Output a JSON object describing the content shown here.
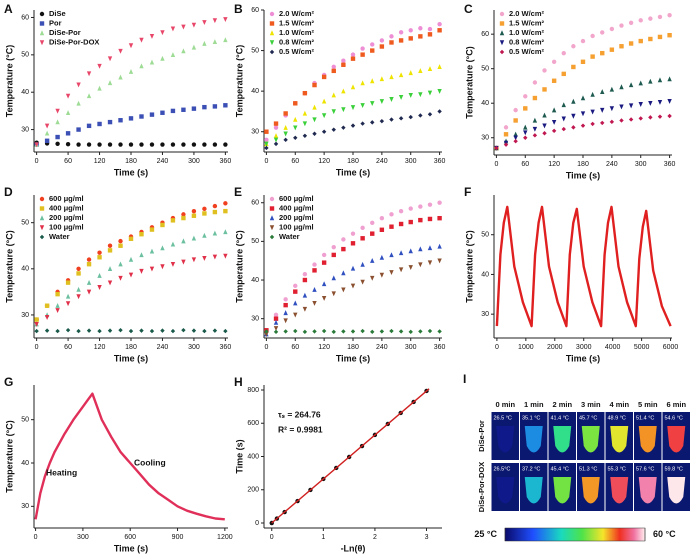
{
  "chart_data": [
    {
      "type": "scatter",
      "panel": "A",
      "xlabel": "Time (s)",
      "ylabel": "Temperature (°C)",
      "x": [
        0,
        20,
        40,
        60,
        80,
        100,
        120,
        140,
        160,
        180,
        200,
        220,
        240,
        260,
        280,
        300,
        320,
        340,
        360
      ],
      "xlim": [
        -5,
        365
      ],
      "xticks": [
        0,
        60,
        120,
        180,
        240,
        300,
        360
      ],
      "ylim": [
        24,
        62
      ],
      "yticks": [
        30,
        40,
        50,
        60
      ],
      "legend": "upper left",
      "series": [
        {
          "name": "DiSe",
          "color": "#111111",
          "marker": "circle",
          "values": [
            26.5,
            26.3,
            26.2,
            26.1,
            26,
            26,
            26,
            26,
            26,
            26,
            26,
            26,
            26,
            26,
            26,
            26,
            26,
            26,
            26
          ]
        },
        {
          "name": "Por",
          "color": "#3b4fb5",
          "marker": "square",
          "values": [
            26,
            27,
            28,
            29,
            30,
            31,
            31.5,
            32,
            32.5,
            33,
            33.5,
            34,
            34.5,
            35,
            35.3,
            35.6,
            36,
            36.2,
            36.5
          ]
        },
        {
          "name": "DiSe-Por",
          "color": "#9edc96",
          "marker": "triangle",
          "values": [
            26,
            29,
            32,
            34.5,
            37,
            39,
            41,
            42.5,
            44,
            45.5,
            47,
            48,
            49,
            50,
            51,
            52,
            53,
            53.5,
            54
          ]
        },
        {
          "name": "DiSe-Por-DOX",
          "color": "#e8476a",
          "marker": "triangle-down",
          "values": [
            26,
            31,
            35,
            39,
            42,
            45,
            47,
            49,
            51,
            52.5,
            54,
            55,
            56,
            57,
            57.5,
            58,
            58.7,
            59.2,
            59.5
          ]
        }
      ]
    },
    {
      "type": "scatter",
      "panel": "B",
      "xlabel": "Time (s)",
      "ylabel": "Temperature (°C)",
      "x": [
        0,
        20,
        40,
        60,
        80,
        100,
        120,
        140,
        160,
        180,
        200,
        220,
        240,
        260,
        280,
        300,
        320,
        340,
        360
      ],
      "xlim": [
        -5,
        365
      ],
      "xticks": [
        0,
        60,
        120,
        180,
        240,
        300,
        360
      ],
      "ylim": [
        25,
        60
      ],
      "yticks": [
        30,
        40,
        50,
        60
      ],
      "legend": "upper left",
      "series": [
        {
          "name": "2.0 W/cm²",
          "color": "#ee8fd6",
          "marker": "circle",
          "values": [
            28,
            31,
            34,
            37,
            39.5,
            42,
            44,
            46,
            47.5,
            49,
            50.5,
            51.5,
            52.5,
            53.5,
            54.5,
            55,
            55.5,
            55.3,
            56.5
          ]
        },
        {
          "name": "1.5 W/cm²",
          "color": "#ef5a1e",
          "marker": "square",
          "values": [
            30,
            32,
            34.5,
            37,
            39.5,
            41.5,
            43.5,
            45,
            46.5,
            48,
            49,
            50,
            51,
            52,
            52.5,
            53,
            53.5,
            54,
            55
          ]
        },
        {
          "name": "1.0 W/cm²",
          "color": "#eee400",
          "marker": "triangle",
          "values": [
            27,
            29,
            31,
            33,
            34.5,
            36,
            37.5,
            39,
            40,
            41,
            42,
            42.5,
            43,
            43.5,
            44,
            44.5,
            45,
            45.5,
            46
          ]
        },
        {
          "name": "0.8 W/cm²",
          "color": "#3ad03a",
          "marker": "triangle-down",
          "values": [
            27,
            28,
            29.5,
            31,
            32,
            33,
            34,
            35,
            35.5,
            36,
            36.5,
            37,
            37.5,
            38,
            38.5,
            39,
            39.2,
            39.6,
            40
          ]
        },
        {
          "name": "0.5 W/cm²",
          "color": "#202a50",
          "marker": "diamond",
          "values": [
            26,
            27,
            28,
            28.5,
            29,
            29.5,
            30,
            30.5,
            31,
            31.5,
            32,
            32.3,
            32.6,
            33,
            33.3,
            33.6,
            34,
            34.3,
            35
          ]
        }
      ]
    },
    {
      "type": "scatter",
      "panel": "C",
      "xlabel": "Time (s)",
      "ylabel": "Temperature (°C)",
      "x": [
        0,
        20,
        40,
        60,
        80,
        100,
        120,
        140,
        160,
        180,
        200,
        220,
        240,
        260,
        280,
        300,
        320,
        340,
        360
      ],
      "xlim": [
        -5,
        365
      ],
      "xticks": [
        0,
        60,
        120,
        180,
        240,
        300,
        360
      ],
      "ylim": [
        25,
        67
      ],
      "yticks": [
        30,
        40,
        50,
        60
      ],
      "legend": "upper left",
      "series": [
        {
          "name": "2.0 W/cm²",
          "color": "#f2a6cc",
          "marker": "circle",
          "values": [
            27,
            33,
            38,
            42,
            46,
            49.5,
            52,
            54.5,
            56.5,
            58,
            59.5,
            60.5,
            61.5,
            62.5,
            63.3,
            64,
            64.5,
            65,
            65.5
          ]
        },
        {
          "name": "1.5 W/cm²",
          "color": "#f5a030",
          "marker": "square",
          "values": [
            27,
            31,
            35,
            38.5,
            41.5,
            44,
            46.5,
            48.5,
            50.5,
            52,
            53.5,
            54.5,
            55.5,
            56.5,
            57.3,
            58,
            58.6,
            59.2,
            59.7
          ]
        },
        {
          "name": "1.0 W/cm²",
          "color": "#1e5a50",
          "marker": "triangle",
          "values": [
            27,
            29,
            31,
            33,
            35,
            36.5,
            38,
            39.5,
            40.5,
            41.5,
            42.5,
            43.3,
            44,
            44.7,
            45.3,
            45.8,
            46.3,
            46.7,
            47
          ]
        },
        {
          "name": "0.8 W/cm²",
          "color": "#1a1a80",
          "marker": "triangle-down",
          "values": [
            27,
            28.5,
            30,
            31.5,
            32.5,
            33.5,
            34.5,
            35.5,
            36.3,
            37,
            37.5,
            38,
            38.5,
            39,
            39.3,
            39.7,
            40,
            40.3,
            40.6
          ]
        },
        {
          "name": "0.5 W/cm²",
          "color": "#c01850",
          "marker": "diamond",
          "values": [
            27,
            28,
            29,
            30,
            30.7,
            31.3,
            32,
            32.5,
            33,
            33.5,
            34,
            34.3,
            34.6,
            35,
            35.3,
            35.6,
            35.9,
            36.1,
            36.3
          ]
        }
      ]
    },
    {
      "type": "scatter",
      "panel": "D",
      "xlabel": "Time (s)",
      "ylabel": "Temperature (°C)",
      "x": [
        0,
        20,
        40,
        60,
        80,
        100,
        120,
        140,
        160,
        180,
        200,
        220,
        240,
        260,
        280,
        300,
        320,
        340,
        360
      ],
      "xlim": [
        -5,
        365
      ],
      "xticks": [
        0,
        60,
        120,
        180,
        240,
        300,
        360
      ],
      "ylim": [
        25,
        56
      ],
      "yticks": [
        30,
        40,
        50
      ],
      "legend": "upper left",
      "series": [
        {
          "name": "600 μg/ml",
          "color": "#f04020",
          "marker": "circle",
          "values": [
            29,
            32,
            35,
            37.5,
            40,
            42,
            43.5,
            45,
            46,
            47,
            48,
            49,
            50,
            51,
            51.8,
            52.5,
            53,
            53.6,
            54.2
          ]
        },
        {
          "name": "400 μg/ml",
          "color": "#e0c020",
          "marker": "square",
          "values": [
            29,
            32,
            34.5,
            37,
            39,
            41,
            42.5,
            44,
            45,
            46.5,
            47.5,
            48.5,
            49.5,
            50.5,
            51,
            51.5,
            52,
            52.3,
            52.5
          ]
        },
        {
          "name": "200 μg/ml",
          "color": "#6cc0a0",
          "marker": "triangle",
          "values": [
            28,
            30,
            32,
            34,
            35.5,
            37,
            38.5,
            40,
            41,
            42,
            43,
            43.8,
            44.5,
            45.3,
            46,
            46.6,
            47.2,
            47.7,
            48
          ]
        },
        {
          "name": "100 μg/ml",
          "color": "#e0304a",
          "marker": "triangle-down",
          "values": [
            28,
            29.5,
            31,
            32.5,
            34,
            35,
            36,
            37,
            38,
            38.7,
            39.5,
            40,
            40.5,
            41,
            41.5,
            42,
            42.3,
            42.6,
            42.8
          ]
        },
        {
          "name": "Water",
          "color": "#1a5a4a",
          "marker": "diamond",
          "values": [
            26.5,
            26.6,
            26.5,
            26.7,
            26.5,
            26.6,
            26.5,
            26.6,
            26.7,
            26.5,
            26.6,
            26.5,
            26.6,
            26.5,
            26.7,
            26.6,
            26.5,
            26.6,
            26.5
          ]
        }
      ]
    },
    {
      "type": "scatter",
      "panel": "E",
      "xlabel": "Time (s)",
      "ylabel": "Temperature (°C)",
      "x": [
        0,
        20,
        40,
        60,
        80,
        100,
        120,
        140,
        160,
        180,
        200,
        220,
        240,
        260,
        280,
        300,
        320,
        340,
        360
      ],
      "xlim": [
        -5,
        365
      ],
      "xticks": [
        0,
        60,
        120,
        180,
        240,
        300,
        360
      ],
      "ylim": [
        25,
        62
      ],
      "yticks": [
        30,
        40,
        50,
        60
      ],
      "legend": "upper left",
      "series": [
        {
          "name": "600 μg/ml",
          "color": "#f0a0d0",
          "marker": "circle",
          "values": [
            27,
            31,
            35,
            38.5,
            41.5,
            44,
            46.5,
            48.5,
            50.5,
            52,
            53.5,
            54.8,
            56,
            57,
            57.8,
            58.5,
            59,
            59.5,
            60
          ]
        },
        {
          "name": "400 μg/ml",
          "color": "#e02030",
          "marker": "square",
          "values": [
            27,
            30,
            33.5,
            37,
            40,
            42.5,
            44.5,
            46.5,
            48,
            49.5,
            50.8,
            52,
            53,
            53.8,
            54.5,
            55,
            55.5,
            55.8,
            56
          ]
        },
        {
          "name": "200 μg/ml",
          "color": "#3050c0",
          "marker": "triangle",
          "values": [
            26,
            29,
            31.5,
            34,
            36,
            37.5,
            39,
            40.5,
            41.8,
            43,
            44,
            45,
            45.8,
            46.5,
            47,
            47.5,
            48,
            48.3,
            48.7
          ]
        },
        {
          "name": "100 μg/ml",
          "color": "#8a5030",
          "marker": "triangle-down",
          "values": [
            26,
            27.5,
            29.5,
            31,
            32.5,
            34,
            35.3,
            36.5,
            37.5,
            38.5,
            39.5,
            40.5,
            41.3,
            42,
            42.7,
            43.3,
            44,
            44.5,
            45
          ]
        },
        {
          "name": "Water",
          "color": "#2a7a3a",
          "marker": "diamond",
          "values": [
            26.7,
            26.6,
            26.7,
            26.8,
            26.6,
            26.7,
            26.8,
            26.6,
            26.7,
            26.7,
            26.8,
            26.6,
            26.7,
            26.8,
            26.7,
            26.6,
            26.7,
            26.8,
            26.7
          ]
        }
      ]
    },
    {
      "type": "line",
      "panel": "F",
      "xlabel": "Time (s)",
      "ylabel": "Temperature (°C)",
      "color": "#e02020",
      "x": [
        0,
        120,
        240,
        360,
        600,
        900,
        1200,
        1320,
        1440,
        1560,
        1800,
        2100,
        2400,
        2520,
        2640,
        2760,
        3000,
        3300,
        3600,
        3720,
        3840,
        3960,
        4200,
        4500,
        4800,
        4920,
        5040,
        5160,
        5400,
        5700,
        6000
      ],
      "values": [
        27,
        45,
        53,
        57,
        42,
        33,
        27,
        45,
        53,
        57,
        42,
        33,
        27,
        45,
        53,
        56.5,
        42,
        33,
        27,
        45,
        53,
        57,
        42,
        33,
        27,
        44,
        52,
        56,
        41,
        32,
        27
      ],
      "xlim": [
        -100,
        6050
      ],
      "xticks": [
        0,
        1000,
        2000,
        3000,
        4000,
        5000,
        6000
      ],
      "ylim": [
        24,
        60
      ],
      "yticks": [
        30,
        40,
        50
      ]
    },
    {
      "type": "line",
      "panel": "G",
      "xlabel": "Time (s)",
      "ylabel": "Temperature (°C)",
      "color": "#e0305a",
      "x": [
        0,
        30,
        60,
        90,
        120,
        180,
        240,
        300,
        330,
        360,
        390,
        420,
        480,
        540,
        600,
        660,
        720,
        780,
        840,
        900,
        960,
        1020,
        1080,
        1140,
        1200
      ],
      "values": [
        27,
        33,
        37,
        40,
        42.5,
        46.5,
        50,
        53,
        54.5,
        56,
        53,
        50,
        46,
        42.5,
        40,
        37.5,
        35,
        33,
        31.5,
        30,
        29,
        28.3,
        27.7,
        27.2,
        27
      ],
      "xlim": [
        -10,
        1220
      ],
      "xticks": [
        0,
        300,
        600,
        900,
        1200
      ],
      "ylim": [
        25,
        58
      ],
      "yticks": [
        30,
        40,
        50
      ],
      "annotations": [
        "Heating",
        "Cooling"
      ]
    },
    {
      "type": "scatter",
      "panel": "H",
      "xlabel": "-Ln(θ)",
      "ylabel": "Time (s)",
      "x": [
        0,
        0.1,
        0.25,
        0.5,
        0.75,
        1,
        1.25,
        1.5,
        1.75,
        2,
        2.25,
        2.5,
        2.75,
        3
      ],
      "xlim": [
        -0.15,
        3.3
      ],
      "xticks": [
        0,
        1,
        2,
        3
      ],
      "ylim": [
        -30,
        830
      ],
      "yticks": [
        0,
        200,
        400,
        600,
        800
      ],
      "series": [
        {
          "color": "#111111",
          "marker": "circle",
          "values": [
            0,
            27,
            66,
            132,
            199,
            265,
            331,
            397,
            463,
            530,
            596,
            662,
            728,
            794
          ]
        }
      ],
      "fit_line": {
        "color": "#d02020",
        "x": [
          0,
          3.05
        ],
        "y": [
          0,
          807
        ]
      },
      "annotations": [
        "τₛ = 264.76",
        "R² = 0.9981"
      ]
    },
    {
      "type": "thermal-image",
      "panel": "I",
      "columns": [
        "0 min",
        "1 min",
        "2 min",
        "3 min",
        "4 min",
        "5 min",
        "6 min"
      ],
      "rows": [
        {
          "name": "DiSe-Por",
          "values": [
            26.5,
            35.1,
            41.4,
            45.7,
            48.9,
            51.4,
            54.6
          ],
          "value_labels": [
            "26.5 °C",
            "35.1 °C",
            "41.4 °C",
            "45.7 °C",
            "48.9 °C",
            "51.4 °C",
            "54.6 °C"
          ]
        },
        {
          "name": "DiSe-Por-DOX",
          "values": [
            26.5,
            37.2,
            45.4,
            51.3,
            55.3,
            57.6,
            59.8
          ],
          "value_labels": [
            "26.5°C",
            "37.2 °C",
            "45.4 °C",
            "51.3 °C",
            "55.3 °C",
            "57.6 °C",
            "59.8 °C"
          ]
        }
      ],
      "clim": [
        25,
        60
      ],
      "colorbar_ticks": [
        {
          "value": 25,
          "label": "25 °C"
        },
        {
          "value": 60,
          "label": "60 °C"
        }
      ]
    }
  ]
}
